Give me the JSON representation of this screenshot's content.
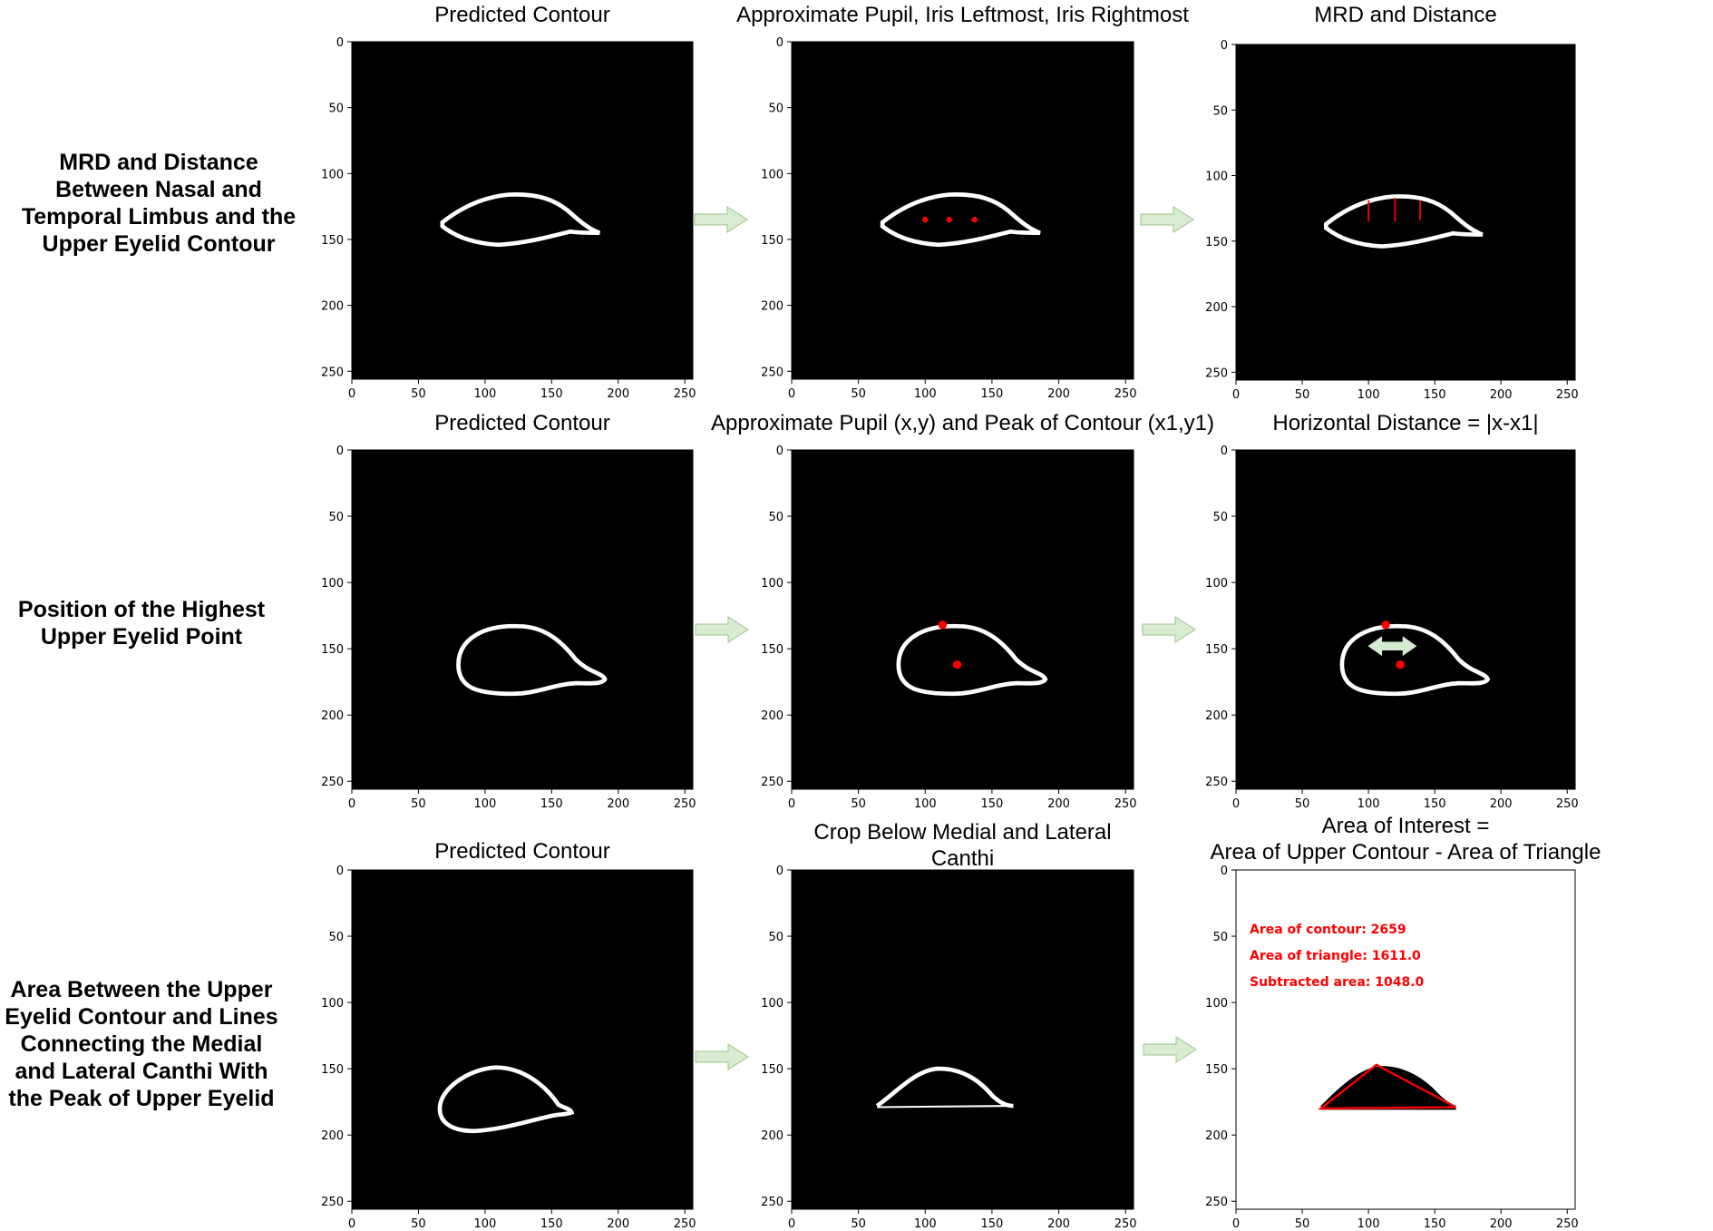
{
  "rows": [
    {
      "label": "MRD and Distance\nBetween Nasal and\nTemporal Limbus and the\nUpper Eyelid Contour",
      "panels": [
        {
          "title": "Predicted Contour",
          "xticks": [
            "0",
            "50",
            "100",
            "150",
            "200",
            "250"
          ],
          "yticks": [
            "0",
            "50",
            "100",
            "150",
            "200",
            "250"
          ]
        },
        {
          "title": "Approximate Pupil, Iris Leftmost, Iris Rightmost",
          "xticks": [
            "0",
            "50",
            "100",
            "150",
            "200",
            "250"
          ],
          "yticks": [
            "0",
            "50",
            "100",
            "150",
            "200",
            "250"
          ]
        },
        {
          "title": "MRD and Distance",
          "xticks": [
            "0",
            "50",
            "100",
            "150",
            "200",
            "250"
          ],
          "yticks": [
            "0",
            "50",
            "100",
            "150",
            "200",
            "250"
          ]
        }
      ]
    },
    {
      "label": "Position of the Highest\nUpper Eyelid Point",
      "panels": [
        {
          "title": "Predicted Contour",
          "xticks": [
            "0",
            "50",
            "100",
            "150",
            "200",
            "250"
          ],
          "yticks": [
            "0",
            "50",
            "100",
            "150",
            "200",
            "250"
          ]
        },
        {
          "title": "Approximate Pupil (x,y) and Peak of Contour (x1,y1)",
          "xticks": [
            "0",
            "50",
            "100",
            "150",
            "200",
            "250"
          ],
          "yticks": [
            "0",
            "50",
            "100",
            "150",
            "200",
            "250"
          ]
        },
        {
          "title": "Horizontal Distance =  |x-x1|",
          "xticks": [
            "0",
            "50",
            "100",
            "150",
            "200",
            "250"
          ],
          "yticks": [
            "0",
            "50",
            "100",
            "150",
            "200",
            "250"
          ]
        }
      ]
    },
    {
      "label": "Area Between the Upper\nEyelid Contour and Lines\nConnecting the Medial\nand Lateral Canthi With\nthe Peak of Upper Eyelid",
      "panels": [
        {
          "title": "Predicted Contour",
          "xticks": [
            "0",
            "50",
            "100",
            "150",
            "200",
            "250"
          ],
          "yticks": [
            "0",
            "50",
            "100",
            "150",
            "200",
            "250"
          ]
        },
        {
          "title_lines": [
            "Crop Below Medial and Lateral",
            "Canthi"
          ],
          "xticks": [
            "0",
            "50",
            "100",
            "150",
            "200",
            "250"
          ],
          "yticks": [
            "0",
            "50",
            "100",
            "150",
            "200",
            "250"
          ]
        },
        {
          "title_lines": [
            "Area of Interest =",
            "Area of Upper Contour - Area of Triangle"
          ],
          "xticks": [
            "0",
            "50",
            "100",
            "150",
            "200",
            "250"
          ],
          "yticks": [
            "0",
            "50",
            "100",
            "150",
            "200",
            "250"
          ],
          "annotations": [
            "Area of contour: 2659",
            "Area of triangle: 1611.0",
            "Subtracted area: 1048.0"
          ]
        }
      ]
    }
  ],
  "colors": {
    "background_panel": "#000000",
    "contour": "#ffffff",
    "marker": "#ff0000",
    "flow_arrow_fill": "#d9ecd2",
    "flow_arrow_stroke": "#9cc48b",
    "double_arrow": "#d4ecd0",
    "annotation_text": "#ff0000"
  },
  "icons": {
    "flow_arrow": "right-arrow-icon",
    "distance_arrow": "double-headed-arrow-icon"
  }
}
